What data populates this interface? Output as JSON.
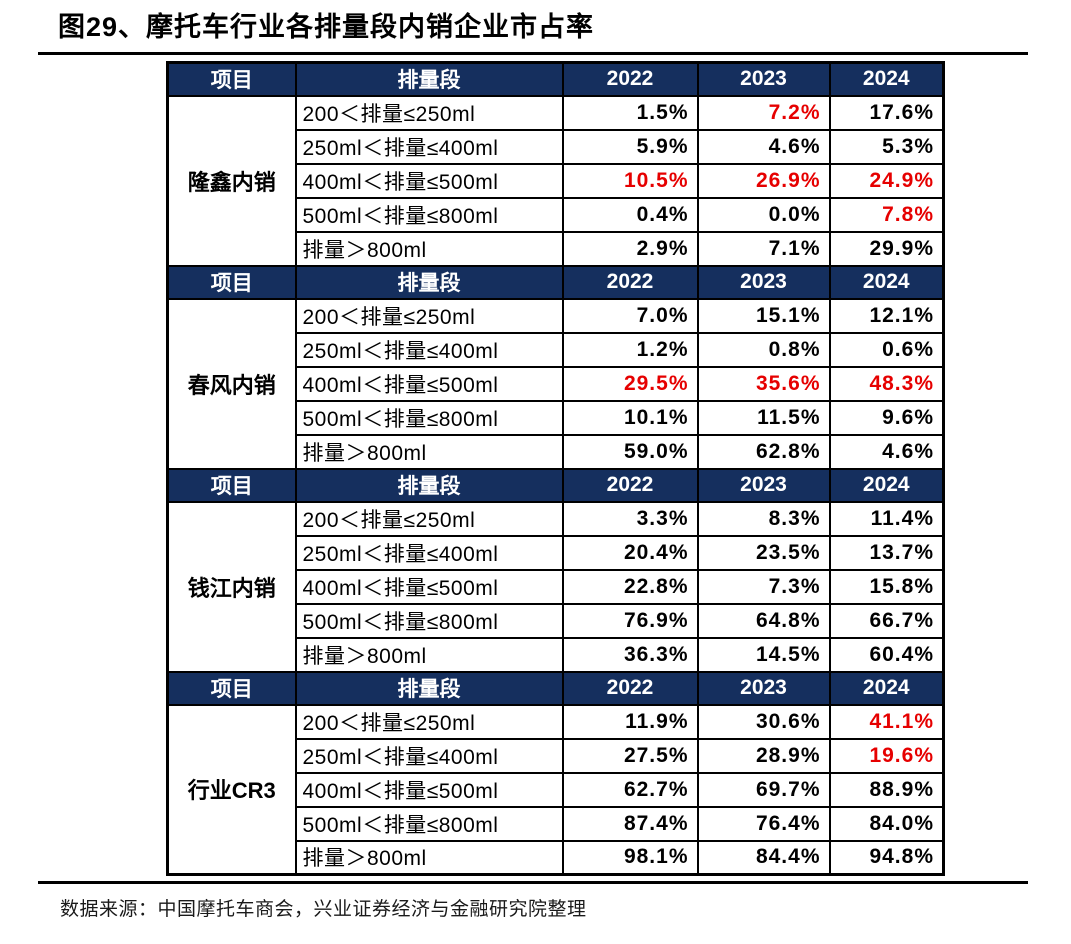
{
  "title": "图29、摩托车行业各排量段内销企业市占率",
  "source": "数据来源：中国摩托车商会，兴业证券经济与金融研究院整理",
  "colors": {
    "header_bg": "#152f5e",
    "header_text": "#ffffff",
    "highlight_red": "#e60000",
    "body_text": "#000000"
  },
  "table": {
    "header": [
      "项目",
      "排量段",
      "2022",
      "2023",
      "2024"
    ],
    "sections": [
      {
        "group": "隆鑫内销",
        "rows": [
          {
            "segment": "200＜排量≤250ml",
            "values": [
              "1.5%",
              "7.2%",
              "17.6%"
            ],
            "red": [
              false,
              true,
              false
            ]
          },
          {
            "segment": "250ml＜排量≤400ml",
            "values": [
              "5.9%",
              "4.6%",
              "5.3%"
            ],
            "red": [
              false,
              false,
              false
            ]
          },
          {
            "segment": "400ml＜排量≤500ml",
            "values": [
              "10.5%",
              "26.9%",
              "24.9%"
            ],
            "red": [
              true,
              true,
              true
            ]
          },
          {
            "segment": "500ml＜排量≤800ml",
            "values": [
              "0.4%",
              "0.0%",
              "7.8%"
            ],
            "red": [
              false,
              false,
              true
            ]
          },
          {
            "segment": "排量＞800ml",
            "values": [
              "2.9%",
              "7.1%",
              "29.9%"
            ],
            "red": [
              false,
              false,
              false
            ]
          }
        ]
      },
      {
        "group": "春风内销",
        "rows": [
          {
            "segment": "200＜排量≤250ml",
            "values": [
              "7.0%",
              "15.1%",
              "12.1%"
            ],
            "red": [
              false,
              false,
              false
            ]
          },
          {
            "segment": "250ml＜排量≤400ml",
            "values": [
              "1.2%",
              "0.8%",
              "0.6%"
            ],
            "red": [
              false,
              false,
              false
            ]
          },
          {
            "segment": "400ml＜排量≤500ml",
            "values": [
              "29.5%",
              "35.6%",
              "48.3%"
            ],
            "red": [
              true,
              true,
              true
            ]
          },
          {
            "segment": "500ml＜排量≤800ml",
            "values": [
              "10.1%",
              "11.5%",
              "9.6%"
            ],
            "red": [
              false,
              false,
              false
            ]
          },
          {
            "segment": "排量＞800ml",
            "values": [
              "59.0%",
              "62.8%",
              "4.6%"
            ],
            "red": [
              false,
              false,
              false
            ]
          }
        ]
      },
      {
        "group": "钱江内销",
        "rows": [
          {
            "segment": "200＜排量≤250ml",
            "values": [
              "3.3%",
              "8.3%",
              "11.4%"
            ],
            "red": [
              false,
              false,
              false
            ]
          },
          {
            "segment": "250ml＜排量≤400ml",
            "values": [
              "20.4%",
              "23.5%",
              "13.7%"
            ],
            "red": [
              false,
              false,
              false
            ]
          },
          {
            "segment": "400ml＜排量≤500ml",
            "values": [
              "22.8%",
              "7.3%",
              "15.8%"
            ],
            "red": [
              false,
              false,
              false
            ]
          },
          {
            "segment": "500ml＜排量≤800ml",
            "values": [
              "76.9%",
              "64.8%",
              "66.7%"
            ],
            "red": [
              false,
              false,
              false
            ]
          },
          {
            "segment": "排量＞800ml",
            "values": [
              "36.3%",
              "14.5%",
              "60.4%"
            ],
            "red": [
              false,
              false,
              false
            ]
          }
        ]
      },
      {
        "group": "行业CR3",
        "rows": [
          {
            "segment": "200＜排量≤250ml",
            "values": [
              "11.9%",
              "30.6%",
              "41.1%"
            ],
            "red": [
              false,
              false,
              true
            ]
          },
          {
            "segment": "250ml＜排量≤400ml",
            "values": [
              "27.5%",
              "28.9%",
              "19.6%"
            ],
            "red": [
              false,
              false,
              true
            ]
          },
          {
            "segment": "400ml＜排量≤500ml",
            "values": [
              "62.7%",
              "69.7%",
              "88.9%"
            ],
            "red": [
              false,
              false,
              false
            ]
          },
          {
            "segment": "500ml＜排量≤800ml",
            "values": [
              "87.4%",
              "76.4%",
              "84.0%"
            ],
            "red": [
              false,
              false,
              false
            ]
          },
          {
            "segment": "排量＞800ml",
            "values": [
              "98.1%",
              "84.4%",
              "94.8%"
            ],
            "red": [
              false,
              false,
              false
            ]
          }
        ]
      }
    ]
  },
  "chart_data": {
    "type": "table",
    "title": "图29、摩托车行业各排量段内销企业市占率",
    "columns": [
      "项目",
      "排量段",
      "2022",
      "2023",
      "2024"
    ],
    "unit": "%",
    "rows": [
      [
        "隆鑫内销",
        "200＜排量≤250ml",
        1.5,
        7.2,
        17.6
      ],
      [
        "隆鑫内销",
        "250ml＜排量≤400ml",
        5.9,
        4.6,
        5.3
      ],
      [
        "隆鑫内销",
        "400ml＜排量≤500ml",
        10.5,
        26.9,
        24.9
      ],
      [
        "隆鑫内销",
        "500ml＜排量≤800ml",
        0.4,
        0.0,
        7.8
      ],
      [
        "隆鑫内销",
        "排量＞800ml",
        2.9,
        7.1,
        29.9
      ],
      [
        "春风内销",
        "200＜排量≤250ml",
        7.0,
        15.1,
        12.1
      ],
      [
        "春风内销",
        "250ml＜排量≤400ml",
        1.2,
        0.8,
        0.6
      ],
      [
        "春风内销",
        "400ml＜排量≤500ml",
        29.5,
        35.6,
        48.3
      ],
      [
        "春风内销",
        "500ml＜排量≤800ml",
        10.1,
        11.5,
        9.6
      ],
      [
        "春风内销",
        "排量＞800ml",
        59.0,
        62.8,
        4.6
      ],
      [
        "钱江内销",
        "200＜排量≤250ml",
        3.3,
        8.3,
        11.4
      ],
      [
        "钱江内销",
        "250ml＜排量≤400ml",
        20.4,
        23.5,
        13.7
      ],
      [
        "钱江内销",
        "400ml＜排量≤500ml",
        22.8,
        7.3,
        15.8
      ],
      [
        "钱江内销",
        "500ml＜排量≤800ml",
        76.9,
        64.8,
        66.7
      ],
      [
        "钱江内销",
        "排量＞800ml",
        36.3,
        14.5,
        60.4
      ],
      [
        "行业CR3",
        "200＜排量≤250ml",
        11.9,
        30.6,
        41.1
      ],
      [
        "行业CR3",
        "250ml＜排量≤400ml",
        27.5,
        28.9,
        19.6
      ],
      [
        "行业CR3",
        "400ml＜排量≤500ml",
        62.7,
        69.7,
        88.9
      ],
      [
        "行业CR3",
        "500ml＜排量≤800ml",
        87.4,
        76.4,
        84.0
      ],
      [
        "行业CR3",
        "排量＞800ml",
        98.1,
        84.4,
        94.8
      ]
    ]
  }
}
